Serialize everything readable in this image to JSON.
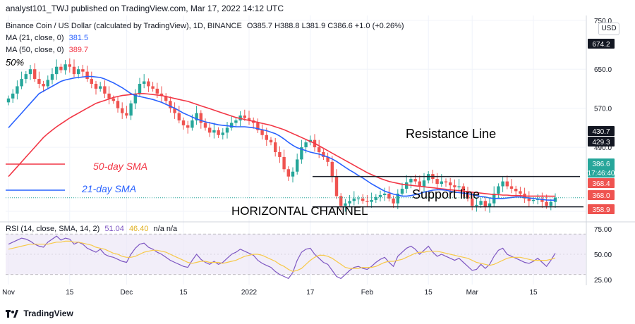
{
  "header": {
    "publisher_line": "analyst101_TWJ published on TradingView.com, Mar 17, 2022 14:12 UTC"
  },
  "legend": {
    "symbol": "Binance Coin / US Dollar (calculated by TradingView), 1D, BINANCE",
    "ohlc": "O385.7  H388.8  L381.9  C386.6  +1.0 (+0.26%)",
    "ma21_label": "MA (21, close, 0)",
    "ma21_value": "381.5",
    "ma50_label": "MA (50, close, 0)",
    "ma50_value": "389.7",
    "rsi_label": "RSI (14, close, SMA, 14, 2)",
    "rsi_value": "51.04",
    "rsi_sma_value": "46.40",
    "rsi_na": "n/a  n/a"
  },
  "currency_button": "USD",
  "footer": {
    "brand": "TradingView"
  },
  "colors": {
    "up": "#26a69a",
    "down": "#ef5350",
    "ma21": "#2962ff",
    "ma50": "#f23645",
    "rsi": "#7e57c2",
    "rsi_sma": "#f7c948",
    "rsi_band": "#ede7f6",
    "grid": "#f0f3fa"
  },
  "chart_data": {
    "type": "candlestick",
    "price_axis": {
      "ylim": [
        340,
        760
      ],
      "ticks": [
        750.0,
        650.0,
        570.0,
        490.0,
        358.7
      ]
    },
    "x_ticks": [
      "Nov",
      "15",
      "Dec",
      "15",
      "2022",
      "17",
      "Feb",
      "15",
      "Mar",
      "15"
    ],
    "price_labels": [
      {
        "value": "674.2",
        "kind": "high"
      },
      {
        "value": "430.7",
        "kind": "resistance"
      },
      {
        "value": "429.3",
        "kind": "resistance"
      },
      {
        "value": "386.6",
        "kind": "last"
      },
      {
        "value": "17:46:40",
        "kind": "countdown"
      },
      {
        "value": "368.4",
        "kind": "ma"
      },
      {
        "value": "368.0",
        "kind": "support"
      },
      {
        "value": "358.9",
        "kind": "low"
      }
    ],
    "annotations": [
      "50%",
      "Resistance Line",
      "Support line",
      "HORIZONTAL CHANNEL",
      "50-day SMA",
      "21-day SMA"
    ],
    "levels": {
      "resistance": 430,
      "support": 368
    },
    "closes": [
      590,
      600,
      615,
      630,
      640,
      650,
      630,
      620,
      615,
      628,
      640,
      655,
      648,
      660,
      655,
      640,
      650,
      645,
      630,
      620,
      610,
      615,
      600,
      590,
      585,
      570,
      560,
      555,
      580,
      600,
      620,
      625,
      615,
      610,
      600,
      595,
      585,
      570,
      560,
      545,
      535,
      530,
      545,
      560,
      540,
      530,
      520,
      525,
      515,
      520,
      530,
      540,
      545,
      555,
      550,
      545,
      540,
      525,
      515,
      505,
      500,
      480,
      470,
      445,
      430,
      440,
      465,
      490,
      500,
      505,
      490,
      480,
      470,
      460,
      430,
      390,
      370,
      375,
      380,
      385,
      385,
      380,
      378,
      382,
      388,
      392,
      395,
      385,
      375,
      395,
      405,
      418,
      425,
      420,
      410,
      422,
      435,
      425,
      415,
      420,
      418,
      412,
      408,
      410,
      400,
      385,
      370,
      372,
      380,
      368,
      375,
      395,
      410,
      420,
      410,
      405,
      400,
      395,
      385,
      380,
      382,
      385,
      378,
      370,
      378,
      386.6
    ],
    "ma21": [
      530,
      540,
      550,
      560,
      570,
      580,
      590,
      600,
      605,
      610,
      615,
      620,
      625,
      628,
      630,
      632,
      633,
      634,
      635,
      635,
      634,
      633,
      630,
      626,
      622,
      617,
      612,
      606,
      600,
      596,
      594,
      592,
      590,
      588,
      585,
      582,
      578,
      574,
      570,
      565,
      560,
      556,
      552,
      548,
      545,
      542,
      540,
      538,
      536,
      535,
      534,
      533,
      532,
      532,
      532,
      531,
      530,
      528,
      526,
      524,
      521,
      518,
      513,
      507,
      500,
      494,
      489,
      486,
      483,
      480,
      478,
      476,
      473,
      470,
      466,
      461,
      455,
      449,
      443,
      438,
      432,
      427,
      421,
      415,
      410,
      405,
      400,
      397,
      394,
      392,
      390,
      390,
      391,
      393,
      395,
      398,
      400,
      402,
      403,
      403,
      402,
      400,
      398,
      397,
      396,
      395,
      393,
      391,
      389,
      388,
      386,
      385,
      385,
      385,
      386,
      387,
      388,
      388,
      387,
      386,
      385,
      384,
      383,
      382,
      381.5,
      381.5
    ],
    "ma50": [
      430,
      440,
      450,
      460,
      470,
      480,
      490,
      500,
      510,
      518,
      525,
      532,
      538,
      544,
      550,
      555,
      560,
      565,
      570,
      575,
      580,
      583,
      586,
      589,
      592,
      594,
      596,
      597,
      598,
      599,
      600,
      600,
      599,
      598,
      597,
      596,
      594,
      592,
      590,
      588,
      586,
      584,
      581,
      578,
      575,
      572,
      569,
      566,
      563,
      560,
      557,
      554,
      551,
      549,
      547,
      545,
      543,
      541,
      539,
      537,
      535,
      532,
      529,
      526,
      522,
      518,
      514,
      510,
      506,
      502,
      498,
      493,
      488,
      483,
      478,
      473,
      468,
      463,
      458,
      453,
      448,
      443,
      438,
      434,
      430,
      426,
      423,
      420,
      418,
      416,
      414,
      413,
      412,
      411,
      410,
      409,
      408,
      407,
      406,
      405,
      404,
      403,
      402,
      401,
      400,
      399,
      398,
      397,
      396,
      395,
      394,
      393,
      393,
      392,
      392,
      391,
      391,
      391,
      390,
      390,
      390,
      390,
      390,
      390,
      389.7,
      389.7
    ],
    "rsi_axis": {
      "ylim": [
        20,
        80
      ],
      "ticks": [
        75.0,
        50.0,
        25.0
      ],
      "band": [
        30,
        70
      ]
    },
    "rsi": [
      60,
      62,
      64,
      66,
      65,
      63,
      60,
      58,
      57,
      62,
      65,
      68,
      64,
      66,
      65,
      60,
      62,
      60,
      56,
      54,
      52,
      55,
      50,
      48,
      47,
      45,
      43,
      42,
      50,
      56,
      60,
      61,
      57,
      55,
      52,
      50,
      47,
      44,
      42,
      40,
      38,
      37,
      44,
      50,
      45,
      42,
      40,
      43,
      40,
      42,
      46,
      50,
      52,
      55,
      53,
      51,
      49,
      44,
      41,
      39,
      37,
      33,
      30,
      28,
      26,
      32,
      44,
      52,
      55,
      56,
      50,
      46,
      42,
      40,
      34,
      28,
      26,
      30,
      34,
      37,
      38,
      36,
      35,
      38,
      42,
      45,
      47,
      42,
      38,
      48,
      52,
      56,
      58,
      55,
      50,
      54,
      58,
      52,
      48,
      50,
      48,
      46,
      44,
      46,
      42,
      38,
      34,
      35,
      40,
      36,
      40,
      48,
      54,
      56,
      50,
      48,
      46,
      44,
      42,
      41,
      43,
      46,
      42,
      38,
      44,
      51.04
    ],
    "rsi_sma": [
      55,
      56,
      57,
      58,
      59,
      60,
      60,
      60,
      60,
      60,
      61,
      62,
      62,
      63,
      63,
      62,
      62,
      61,
      60,
      59,
      57,
      56,
      55,
      53,
      51,
      50,
      48,
      47,
      47,
      48,
      50,
      52,
      53,
      54,
      54,
      53,
      52,
      50,
      48,
      46,
      44,
      42,
      41,
      42,
      43,
      43,
      42,
      42,
      42,
      41,
      42,
      43,
      44,
      46,
      48,
      49,
      50,
      50,
      49,
      47,
      45,
      43,
      40,
      38,
      35,
      33,
      34,
      36,
      40,
      44,
      47,
      49,
      49,
      48,
      46,
      43,
      40,
      37,
      36,
      36,
      36,
      37,
      37,
      37,
      38,
      40,
      42,
      43,
      43,
      44,
      45,
      47,
      49,
      51,
      52,
      52,
      53,
      53,
      53,
      52,
      51,
      50,
      49,
      48,
      47,
      46,
      44,
      42,
      41,
      40,
      39,
      40,
      42,
      44,
      46,
      47,
      47,
      47,
      46,
      45,
      44,
      44,
      44,
      44,
      45,
      46.4
    ]
  }
}
